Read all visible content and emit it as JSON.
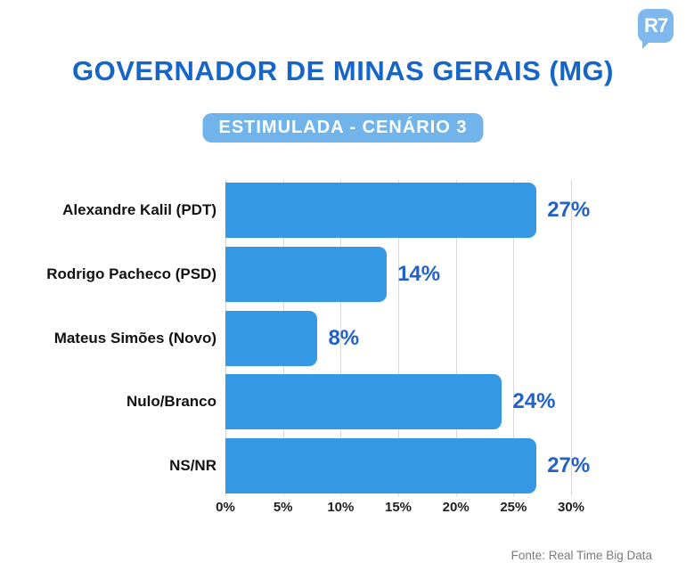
{
  "logo": {
    "text": "R7",
    "bg_color": "#7fb8ed"
  },
  "header": {
    "title": "GOVERNADOR DE MINAS GERAIS (MG)",
    "title_color": "#1566c8",
    "badge": "ESTIMULADA - CENÁRIO 3",
    "badge_bg_color": "#70b4eb"
  },
  "chart_data": {
    "type": "bar",
    "orientation": "horizontal",
    "categories": [
      "Alexandre Kalil (PDT)",
      "Rodrigo Pacheco (PSD)",
      "Mateus Simões (Novo)",
      "Nulo/Branco",
      "NS/NR"
    ],
    "values": [
      27,
      14,
      8,
      24,
      27
    ],
    "value_labels": [
      "27%",
      "14%",
      "8%",
      "24%",
      "27%"
    ],
    "x_ticks": [
      "0%",
      "5%",
      "10%",
      "15%",
      "20%",
      "25%",
      "30%"
    ],
    "xlim": [
      0,
      30
    ],
    "grid": true,
    "legend": false,
    "bar_color": "#3598e4",
    "value_label_color": "#2162c9",
    "gridline_color": "#d9d9d9"
  },
  "footer": {
    "source": "Fonte: Real Time Big Data"
  }
}
